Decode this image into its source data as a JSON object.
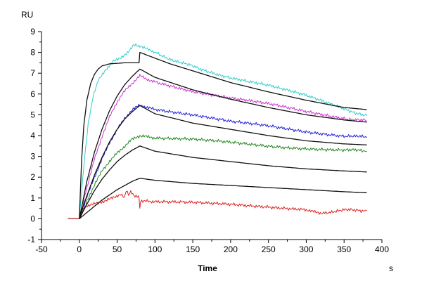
{
  "chart_data": {
    "type": "line",
    "title": "",
    "xlabel": "Time",
    "xunit": "s",
    "ylabel": "RU",
    "xlim": [
      -50,
      400
    ],
    "ylim": [
      -1,
      9
    ],
    "xticks": [
      -50,
      0,
      50,
      100,
      150,
      200,
      250,
      300,
      350,
      400
    ],
    "yticks": [
      -1,
      0,
      1,
      2,
      3,
      4,
      5,
      6,
      7,
      8,
      9
    ],
    "grid": false,
    "legend": "none",
    "series": [
      {
        "name": "cyan sensorgram",
        "color": "#33cccc",
        "noisy": true,
        "points": [
          [
            -15,
            0
          ],
          [
            0,
            0
          ],
          [
            3,
            1.2
          ],
          [
            7,
            3.0
          ],
          [
            12,
            4.6
          ],
          [
            18,
            5.8
          ],
          [
            25,
            6.6
          ],
          [
            35,
            7.2
          ],
          [
            45,
            7.6
          ],
          [
            55,
            7.8
          ],
          [
            65,
            8.0
          ],
          [
            72,
            8.3
          ],
          [
            80,
            8.35
          ],
          [
            100,
            8.0
          ],
          [
            130,
            7.55
          ],
          [
            160,
            7.2
          ],
          [
            200,
            6.8
          ],
          [
            250,
            6.4
          ],
          [
            300,
            5.9
          ],
          [
            350,
            5.3
          ],
          [
            380,
            4.95
          ]
        ]
      },
      {
        "name": "magenta sensorgram",
        "color": "#cc33cc",
        "noisy": true,
        "points": [
          [
            -15,
            0
          ],
          [
            0,
            0
          ],
          [
            5,
            0.7
          ],
          [
            10,
            1.5
          ],
          [
            20,
            2.9
          ],
          [
            30,
            4.0
          ],
          [
            40,
            4.9
          ],
          [
            50,
            5.6
          ],
          [
            60,
            6.1
          ],
          [
            70,
            6.5
          ],
          [
            80,
            6.9
          ],
          [
            100,
            6.6
          ],
          [
            150,
            6.15
          ],
          [
            200,
            5.8
          ],
          [
            250,
            5.5
          ],
          [
            300,
            5.15
          ],
          [
            350,
            4.85
          ],
          [
            380,
            4.7
          ]
        ]
      },
      {
        "name": "blue sensorgram",
        "color": "#2222dd",
        "noisy": true,
        "points": [
          [
            -15,
            0
          ],
          [
            0,
            0
          ],
          [
            5,
            0.5
          ],
          [
            10,
            1.0
          ],
          [
            20,
            2.0
          ],
          [
            30,
            2.9
          ],
          [
            40,
            3.7
          ],
          [
            50,
            4.3
          ],
          [
            60,
            4.8
          ],
          [
            70,
            5.2
          ],
          [
            80,
            5.45
          ],
          [
            100,
            5.3
          ],
          [
            150,
            5.0
          ],
          [
            200,
            4.65
          ],
          [
            250,
            4.45
          ],
          [
            300,
            4.2
          ],
          [
            350,
            4.0
          ],
          [
            380,
            3.9
          ]
        ]
      },
      {
        "name": "green sensorgram",
        "color": "#228822",
        "noisy": true,
        "points": [
          [
            -15,
            0
          ],
          [
            0,
            0
          ],
          [
            5,
            0.4
          ],
          [
            10,
            0.8
          ],
          [
            20,
            1.6
          ],
          [
            30,
            2.3
          ],
          [
            40,
            2.8
          ],
          [
            50,
            3.2
          ],
          [
            60,
            3.5
          ],
          [
            70,
            3.8
          ],
          [
            80,
            3.95
          ],
          [
            100,
            3.9
          ],
          [
            150,
            3.8
          ],
          [
            200,
            3.65
          ],
          [
            250,
            3.5
          ],
          [
            300,
            3.4
          ],
          [
            350,
            3.3
          ],
          [
            380,
            3.25
          ]
        ]
      },
      {
        "name": "red sensorgram",
        "color": "#dd2222",
        "noisy": true,
        "points": [
          [
            -15,
            0
          ],
          [
            0,
            0
          ],
          [
            3,
            0.3
          ],
          [
            8,
            0.55
          ],
          [
            15,
            0.7
          ],
          [
            25,
            0.8
          ],
          [
            35,
            0.9
          ],
          [
            45,
            1.0
          ],
          [
            55,
            1.15
          ],
          [
            60,
            1.05
          ],
          [
            62,
            1.35
          ],
          [
            65,
            1.1
          ],
          [
            68,
            1.3
          ],
          [
            72,
            1.15
          ],
          [
            78,
            1.05
          ],
          [
            79,
            1.0
          ],
          [
            80,
            0.5
          ],
          [
            81,
            0.85
          ],
          [
            100,
            0.8
          ],
          [
            150,
            0.75
          ],
          [
            200,
            0.7
          ],
          [
            250,
            0.6
          ],
          [
            300,
            0.45
          ],
          [
            320,
            0.3
          ],
          [
            350,
            0.4
          ],
          [
            380,
            0.4
          ]
        ]
      },
      {
        "name": "fit 1",
        "color": "#111111",
        "noisy": false,
        "points": [
          [
            0,
            0
          ],
          [
            3,
            2.8
          ],
          [
            6,
            4.5
          ],
          [
            10,
            5.7
          ],
          [
            15,
            6.5
          ],
          [
            20,
            6.95
          ],
          [
            25,
            7.2
          ],
          [
            30,
            7.35
          ],
          [
            40,
            7.45
          ],
          [
            60,
            7.5
          ],
          [
            79,
            7.5
          ],
          [
            80,
            8.0
          ],
          [
            120,
            7.45
          ],
          [
            160,
            7.0
          ],
          [
            200,
            6.55
          ],
          [
            250,
            6.1
          ],
          [
            300,
            5.7
          ],
          [
            350,
            5.35
          ],
          [
            380,
            5.25
          ]
        ]
      },
      {
        "name": "fit 2",
        "color": "#111111",
        "noisy": false,
        "points": [
          [
            0,
            0
          ],
          [
            5,
            0.9
          ],
          [
            10,
            1.8
          ],
          [
            20,
            3.2
          ],
          [
            30,
            4.3
          ],
          [
            40,
            5.2
          ],
          [
            50,
            5.9
          ],
          [
            60,
            6.45
          ],
          [
            70,
            6.85
          ],
          [
            80,
            7.2
          ],
          [
            100,
            6.8
          ],
          [
            150,
            6.2
          ],
          [
            200,
            5.75
          ],
          [
            250,
            5.35
          ],
          [
            300,
            5.0
          ],
          [
            350,
            4.75
          ],
          [
            380,
            4.65
          ]
        ]
      },
      {
        "name": "fit 3",
        "color": "#111111",
        "noisy": false,
        "points": [
          [
            0,
            0
          ],
          [
            5,
            0.6
          ],
          [
            10,
            1.1
          ],
          [
            20,
            2.1
          ],
          [
            30,
            2.95
          ],
          [
            40,
            3.7
          ],
          [
            50,
            4.3
          ],
          [
            60,
            4.8
          ],
          [
            70,
            5.15
          ],
          [
            80,
            5.45
          ],
          [
            100,
            5.05
          ],
          [
            150,
            4.6
          ],
          [
            200,
            4.3
          ],
          [
            250,
            4.0
          ],
          [
            300,
            3.75
          ],
          [
            350,
            3.6
          ],
          [
            380,
            3.55
          ]
        ]
      },
      {
        "name": "fit 4",
        "color": "#111111",
        "noisy": false,
        "points": [
          [
            0,
            0
          ],
          [
            5,
            0.35
          ],
          [
            10,
            0.7
          ],
          [
            20,
            1.35
          ],
          [
            30,
            1.9
          ],
          [
            40,
            2.35
          ],
          [
            50,
            2.75
          ],
          [
            60,
            3.05
          ],
          [
            70,
            3.3
          ],
          [
            80,
            3.5
          ],
          [
            100,
            3.25
          ],
          [
            150,
            2.95
          ],
          [
            200,
            2.75
          ],
          [
            250,
            2.55
          ],
          [
            300,
            2.4
          ],
          [
            350,
            2.3
          ],
          [
            380,
            2.25
          ]
        ]
      },
      {
        "name": "fit 5",
        "color": "#111111",
        "noisy": false,
        "points": [
          [
            0,
            0
          ],
          [
            5,
            0.15
          ],
          [
            10,
            0.3
          ],
          [
            20,
            0.6
          ],
          [
            30,
            0.9
          ],
          [
            40,
            1.15
          ],
          [
            50,
            1.4
          ],
          [
            60,
            1.6
          ],
          [
            70,
            1.8
          ],
          [
            80,
            1.95
          ],
          [
            100,
            1.85
          ],
          [
            150,
            1.7
          ],
          [
            200,
            1.6
          ],
          [
            250,
            1.5
          ],
          [
            300,
            1.4
          ],
          [
            350,
            1.3
          ],
          [
            380,
            1.25
          ]
        ]
      }
    ]
  }
}
